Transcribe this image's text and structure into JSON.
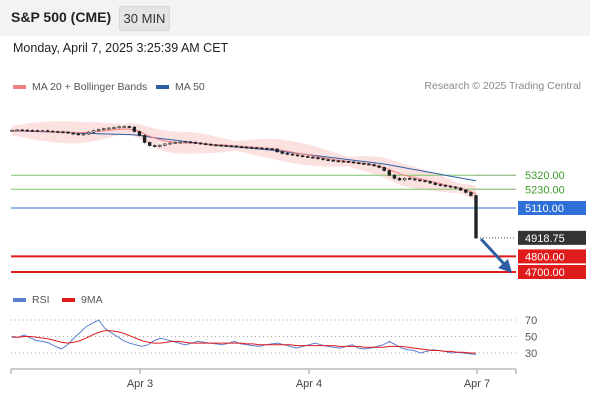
{
  "header": {
    "title": "S&P 500 (CME)",
    "timeframe": "30 MIN"
  },
  "datetime": "Monday, April 7, 2025 3:25:39 AM CET",
  "legend": {
    "ma20_label": "MA 20 + Bollinger Bands",
    "ma50_label": "MA 50",
    "credit": "Research © 2025 Trading Central"
  },
  "rsi_legend": {
    "rsi_label": "RSI",
    "ma9_label": "9MA"
  },
  "colors": {
    "ma20": "#f08080",
    "ma50": "#2e5fa3",
    "bollinger_fill": "#fbd9d9",
    "resistance": "#7ec26b",
    "pivot": "#2e6fd8",
    "support": "#e01b1b",
    "price_label_bg": "#333333",
    "rsi_line": "#5b7fd1",
    "rsi_ma": "#e01b1b",
    "arrow": "#2e5fa3"
  },
  "chart_data": {
    "type": "line",
    "title": "S&P 500 (CME)",
    "timeframe": "30 MIN",
    "x_ticks": [
      "Apr 3",
      "Apr 4",
      "Apr 7"
    ],
    "ylim": [
      4650,
      5700
    ],
    "levels": [
      {
        "name": "resistance-2",
        "value": 5320.0,
        "label": "5320.00",
        "kind": "resistance"
      },
      {
        "name": "resistance-1",
        "value": 5230.0,
        "label": "5230.00",
        "kind": "resistance"
      },
      {
        "name": "pivot",
        "value": 5110.0,
        "label": "5110.00",
        "kind": "pivot"
      },
      {
        "name": "last-price",
        "value": 4918.75,
        "label": "4918.75",
        "kind": "price"
      },
      {
        "name": "support-1",
        "value": 4800.0,
        "label": "4800.00",
        "kind": "support"
      },
      {
        "name": "support-2",
        "value": 4700.0,
        "label": "4700.00",
        "kind": "support"
      }
    ],
    "price_series": {
      "name": "S&P 500",
      "values": [
        5608,
        5610,
        5609,
        5607,
        5606,
        5604,
        5605,
        5602,
        5600,
        5598,
        5596,
        5590,
        5585,
        5580,
        5584,
        5595,
        5605,
        5612,
        5618,
        5622,
        5626,
        5630,
        5632,
        5628,
        5600,
        5575,
        5530,
        5510,
        5505,
        5512,
        5520,
        5526,
        5530,
        5532,
        5534,
        5530,
        5526,
        5522,
        5518,
        5514,
        5512,
        5510,
        5508,
        5506,
        5502,
        5500,
        5498,
        5496,
        5494,
        5492,
        5490,
        5488,
        5470,
        5460,
        5455,
        5450,
        5445,
        5440,
        5436,
        5432,
        5426,
        5420,
        5416,
        5412,
        5410,
        5408,
        5405,
        5400,
        5396,
        5392,
        5388,
        5380,
        5370,
        5350,
        5320,
        5300,
        5290,
        5300,
        5296,
        5290,
        5285,
        5280,
        5270,
        5260,
        5255,
        5250,
        5245,
        5238,
        5225,
        5210,
        5190,
        4918
      ]
    },
    "ma50_series": {
      "name": "MA 50",
      "values": [
        5604,
        5604,
        5603,
        5602,
        5601,
        5600,
        5599,
        5598,
        5597,
        5596,
        5595,
        5594,
        5592,
        5590,
        5589,
        5588,
        5587,
        5586,
        5585,
        5584,
        5583,
        5582,
        5581,
        5580,
        5578,
        5575,
        5570,
        5565,
        5560,
        5556,
        5552,
        5548,
        5544,
        5540,
        5536,
        5532,
        5528,
        5524,
        5520,
        5516,
        5513,
        5510,
        5507,
        5504,
        5501,
        5498,
        5495,
        5492,
        5489,
        5486,
        5483,
        5480,
        5476,
        5472,
        5468,
        5464,
        5460,
        5456,
        5452,
        5448,
        5444,
        5440,
        5436,
        5432,
        5428,
        5424,
        5420,
        5416,
        5412,
        5408,
        5404,
        5400,
        5396,
        5392,
        5386,
        5380,
        5374,
        5368,
        5362,
        5356,
        5350,
        5344,
        5338,
        5332,
        5326,
        5320,
        5314,
        5308,
        5302,
        5296,
        5290,
        5284
      ]
    },
    "ma20_series": {
      "name": "MA 20",
      "values": [
        5606,
        5606,
        5605,
        5604,
        5603,
        5602,
        5601,
        5600,
        5598,
        5597,
        5596,
        5595,
        5594,
        5593,
        5594,
        5596,
        5599,
        5602,
        5605,
        5608,
        5611,
        5614,
        5616,
        5616,
        5610,
        5600,
        5585,
        5570,
        5558,
        5548,
        5540,
        5534,
        5530,
        5528,
        5527,
        5526,
        5525,
        5523,
        5521,
        5519,
        5516,
        5514,
        5512,
        5510,
        5508,
        5505,
        5503,
        5500,
        5498,
        5495,
        5492,
        5490,
        5485,
        5480,
        5474,
        5468,
        5462,
        5456,
        5450,
        5444,
        5438,
        5432,
        5426,
        5421,
        5416,
        5412,
        5408,
        5403,
        5399,
        5395,
        5390,
        5384,
        5377,
        5368,
        5356,
        5343,
        5330,
        5320,
        5312,
        5304,
        5297,
        5290,
        5282,
        5274,
        5266,
        5258,
        5250,
        5242,
        5234,
        5225,
        5215,
        5200
      ]
    },
    "rsi_panel": {
      "ylim": [
        0,
        100
      ],
      "ticks": [
        "70",
        "50",
        "30"
      ],
      "rsi": [
        50,
        49,
        52,
        48,
        45,
        44,
        42,
        38,
        35,
        40,
        48,
        55,
        62,
        66,
        70,
        60,
        55,
        50,
        45,
        42,
        40,
        38,
        40,
        45,
        48,
        46,
        44,
        42,
        40,
        42,
        44,
        43,
        42,
        41,
        40,
        42,
        44,
        41,
        40,
        39,
        38,
        40,
        41,
        42,
        40,
        38,
        36,
        38,
        40,
        42,
        40,
        38,
        37,
        36,
        38,
        40,
        36,
        35,
        36,
        38,
        40,
        44,
        40,
        36,
        34,
        33,
        30,
        32,
        34,
        33,
        32,
        30,
        31,
        30,
        29,
        28
      ],
      "ma9": [
        49,
        49,
        50,
        50,
        49,
        48,
        47,
        45,
        43,
        42,
        43,
        45,
        48,
        52,
        55,
        57,
        57,
        56,
        54,
        51,
        48,
        45,
        43,
        42,
        42,
        43,
        44,
        44,
        43,
        42,
        42,
        42,
        42,
        42,
        42,
        42,
        42,
        42,
        41,
        41,
        40,
        40,
        40,
        40,
        40,
        40,
        39,
        39,
        39,
        39,
        39,
        39,
        39,
        38,
        38,
        38,
        38,
        37,
        37,
        37,
        37,
        38,
        38,
        38,
        37,
        36,
        35,
        34,
        33,
        33,
        32,
        32,
        31,
        31,
        30,
        30
      ]
    }
  }
}
